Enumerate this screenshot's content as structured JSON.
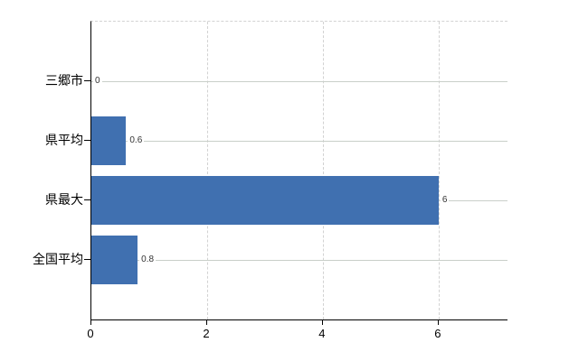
{
  "chart_data": {
    "type": "bar",
    "orientation": "horizontal",
    "title": "",
    "xlabel": "",
    "ylabel": "",
    "categories": [
      "三郷市",
      "県平均",
      "県最大",
      "全国平均"
    ],
    "values": [
      0,
      0.6,
      6,
      0.8
    ],
    "value_labels": [
      "0",
      "0.6",
      "6",
      "0.8"
    ],
    "x_tick_labels": [
      "0",
      "2",
      "4",
      "6"
    ],
    "x_tick_values": [
      0,
      2,
      4,
      6
    ],
    "xlim": [
      0,
      7.19
    ],
    "grid": true,
    "legend": "none",
    "colors": {
      "bar": "#4070b0",
      "axis": "#000000",
      "row_gridline": "#c9cfc9",
      "dashed_gridline": "#d2d2d2",
      "value_label": "#333333",
      "background": "#ffffff"
    }
  }
}
